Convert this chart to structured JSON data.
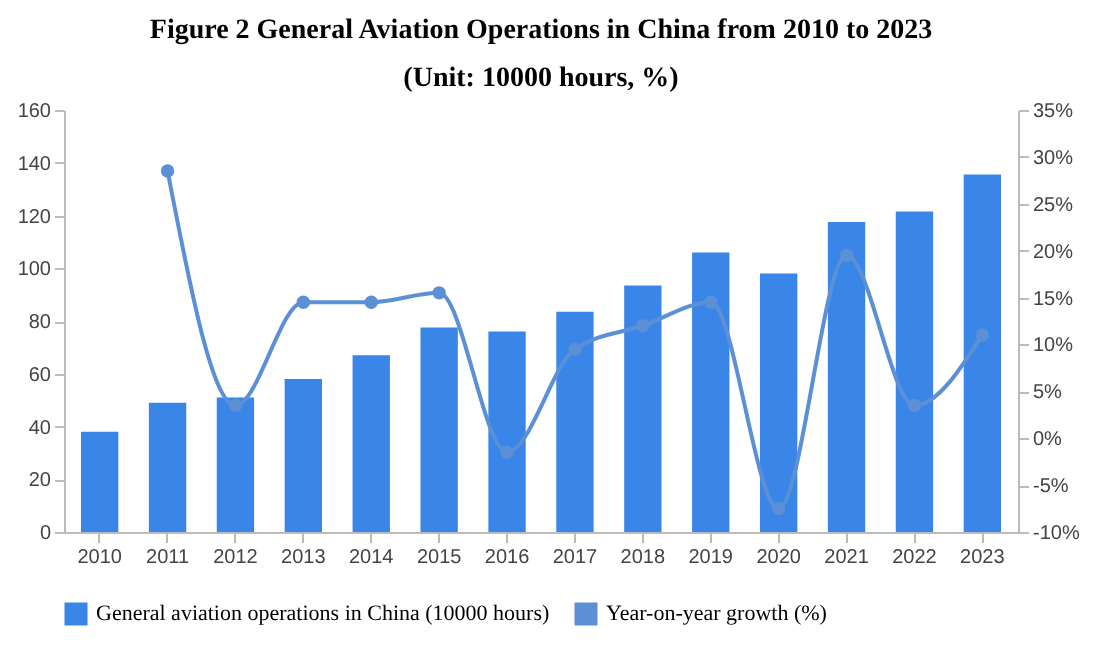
{
  "chart_data": {
    "type": "bar",
    "title": "Figure 2 General Aviation Operations in China from 2010 to 2023",
    "subtitle": "(Unit: 10000 hours, %)",
    "categories": [
      "2010",
      "2011",
      "2012",
      "2013",
      "2014",
      "2015",
      "2016",
      "2017",
      "2018",
      "2019",
      "2020",
      "2021",
      "2022",
      "2023"
    ],
    "series": [
      {
        "name": "General aviation operations in China (10000 hours)",
        "color": "#3a86e8",
        "values": [
          38,
          49,
          51,
          58,
          67,
          77.5,
          76,
          83.5,
          93.5,
          106,
          98,
          117.5,
          121.5,
          135.5
        ]
      },
      {
        "name": "Year-on-year growth (%)",
        "type": "line",
        "axis": "y2",
        "color": "#5b8fd6",
        "marker": "circle",
        "values": [
          null,
          28.5,
          3.5,
          14.5,
          14.5,
          15.5,
          -1.5,
          9.5,
          12,
          14.5,
          -7.5,
          19.5,
          3.5,
          11
        ]
      }
    ],
    "ylim": [
      0,
      160
    ],
    "yticks": [
      0,
      20,
      40,
      60,
      80,
      100,
      120,
      140,
      160
    ],
    "y2lim": [
      -10,
      35
    ],
    "y2ticks": [
      {
        "value": 35,
        "label": "35%"
      },
      {
        "value": 30,
        "label": "30%"
      },
      {
        "value": 25,
        "label": "25%"
      },
      {
        "value": 20,
        "label": "20%"
      },
      {
        "value": 15,
        "label": "15%"
      },
      {
        "value": 10,
        "label": "10%"
      },
      {
        "value": 5,
        "label": "5%"
      },
      {
        "value": 0,
        "label": "0%"
      },
      {
        "value": -5,
        "label": "-5%"
      },
      {
        "value": -10,
        "label": "-10%"
      }
    ],
    "grid": false,
    "legend": "bottom"
  }
}
